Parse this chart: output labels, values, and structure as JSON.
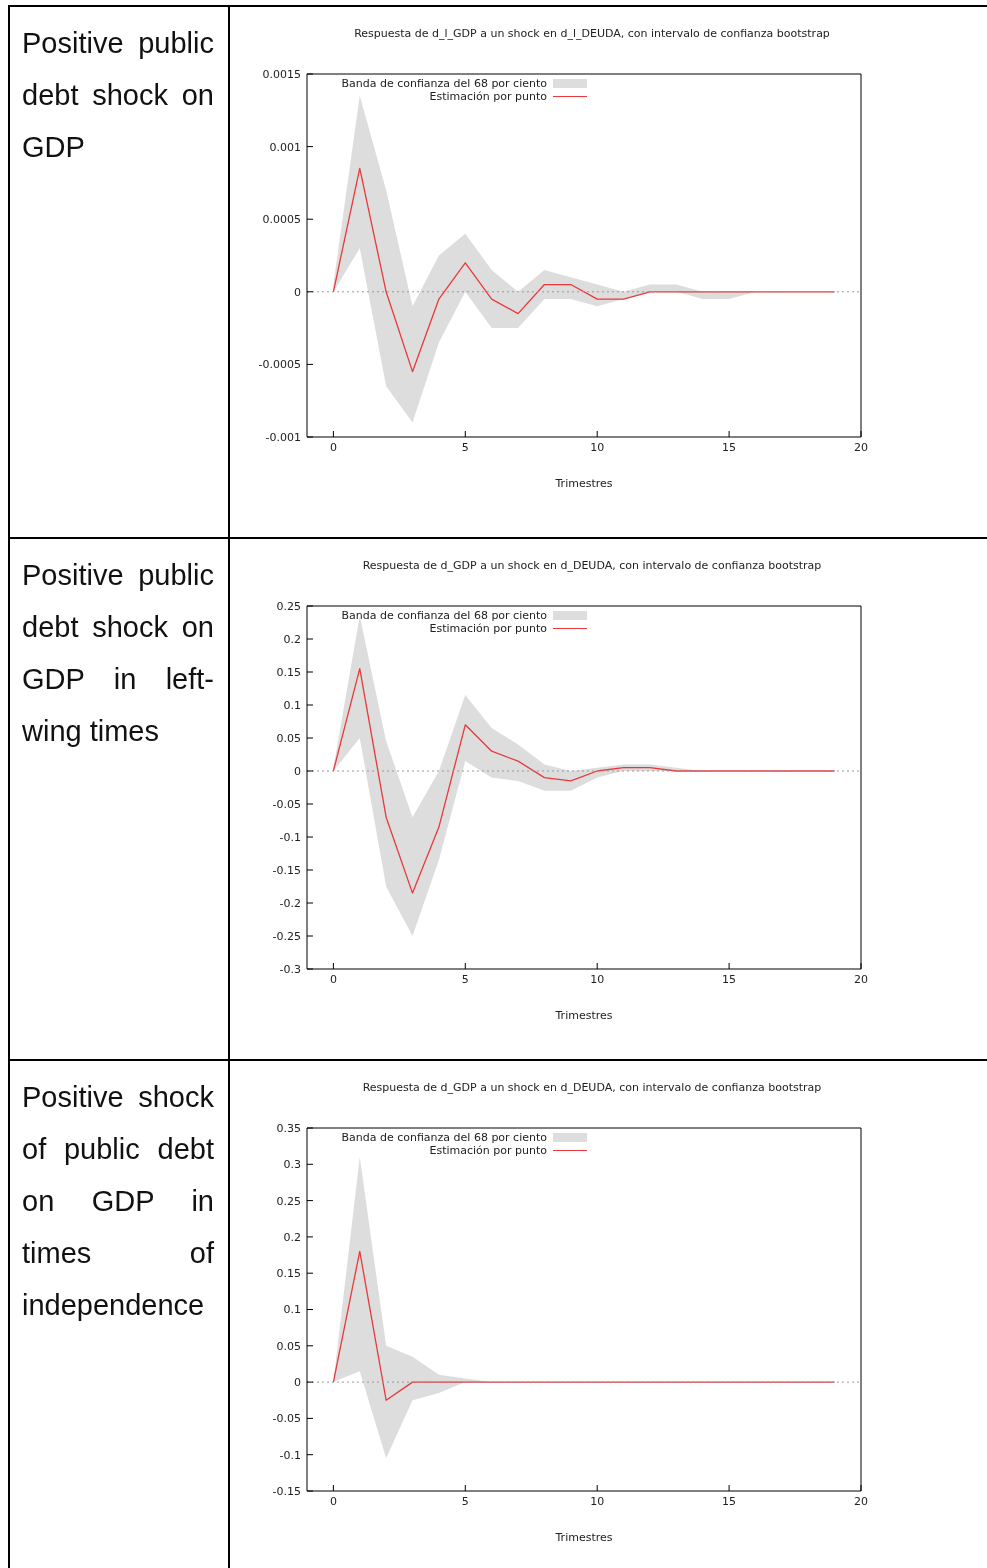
{
  "chart_data": [
    {
      "type": "line",
      "title": "Respuesta de d_l_GDP a un shock en d_l_DEUDA, con intervalo de confianza bootstrap",
      "xlabel": "Trimestres",
      "annotations": [
        "Positive public debt shock on GDP",
        "Banda de confianza del 68 por ciento"
      ],
      "legend": "top left",
      "x": [
        0,
        1,
        2,
        3,
        4,
        5,
        6,
        7,
        8,
        9,
        10,
        11,
        12,
        13,
        14,
        15,
        16,
        17,
        18,
        19
      ],
      "series": [
        {
          "name": "Estimación por punto",
          "color": "#e8393c",
          "values": [
            0,
            0.00085,
            0,
            -0.00055,
            -5e-05,
            0.0002,
            -5e-05,
            -0.00015,
            5e-05,
            5e-05,
            -5e-05,
            -5e-05,
            0,
            0,
            0,
            0,
            0,
            0,
            0,
            0
          ],
          "lower": [
            0,
            0.0003,
            -0.00065,
            -0.0009,
            -0.00035,
            0,
            -0.00025,
            -0.00025,
            -5e-05,
            -5e-05,
            -0.0001,
            -5e-05,
            0,
            0,
            -5e-05,
            -5e-05,
            0,
            0,
            0,
            0
          ],
          "upper": [
            5e-05,
            0.00135,
            0.0007,
            -0.0001,
            0.00025,
            0.0004,
            0.00015,
            0,
            0.00015,
            0.0001,
            5e-05,
            0,
            5e-05,
            5e-05,
            0,
            0,
            0,
            0,
            0,
            0
          ]
        }
      ],
      "xlim": [
        -1,
        20
      ],
      "xticks": [
        0,
        5,
        10,
        15,
        20
      ],
      "ylim": [
        -0.001,
        0.0015
      ],
      "yticks": [
        -0.001,
        -0.0005,
        0,
        0.0005,
        0.001,
        0.0015
      ],
      "ref_lines": [
        {
          "axis": "y",
          "value": 0,
          "color": "#999999",
          "line_style": "dotted"
        }
      ]
    },
    {
      "type": "line",
      "title": "Respuesta de d_GDP a un shock en d_DEUDA, con intervalo de confianza bootstrap",
      "xlabel": "Trimestres",
      "annotations": [
        "Positive public debt shock on GDP in left-wing times",
        "Banda de confianza del 68 por ciento"
      ],
      "legend": "top left",
      "x": [
        0,
        1,
        2,
        3,
        4,
        5,
        6,
        7,
        8,
        9,
        10,
        11,
        12,
        13,
        14,
        15,
        16,
        17,
        18,
        19
      ],
      "series": [
        {
          "name": "Estimación por punto",
          "color": "#e8393c",
          "values": [
            0,
            0.155,
            -0.07,
            -0.185,
            -0.085,
            0.07,
            0.03,
            0.015,
            -0.01,
            -0.015,
            0,
            0.005,
            0.005,
            0,
            0,
            0,
            0,
            0,
            0,
            0
          ],
          "lower": [
            0,
            0.05,
            -0.175,
            -0.25,
            -0.135,
            0.015,
            -0.01,
            -0.015,
            -0.03,
            -0.03,
            -0.01,
            0,
            0,
            0,
            0,
            0,
            0,
            0,
            0,
            0
          ],
          "upper": [
            0.005,
            0.235,
            0.045,
            -0.07,
            0,
            0.115,
            0.065,
            0.04,
            0.01,
            0,
            0.005,
            0.01,
            0.01,
            0.005,
            0,
            0,
            0,
            0,
            0,
            0
          ]
        }
      ],
      "xlim": [
        -1,
        20
      ],
      "xticks": [
        0,
        5,
        10,
        15,
        20
      ],
      "ylim": [
        -0.3,
        0.25
      ],
      "yticks": [
        -0.3,
        -0.25,
        -0.2,
        -0.15,
        -0.1,
        -0.05,
        0,
        0.05,
        0.1,
        0.15,
        0.2,
        0.25
      ],
      "ref_lines": [
        {
          "axis": "y",
          "value": 0,
          "color": "#999999",
          "line_style": "dotted"
        }
      ]
    },
    {
      "type": "line",
      "title": "Respuesta de d_GDP a un shock en d_DEUDA, con intervalo de confianza bootstrap",
      "xlabel": "Trimestres",
      "annotations": [
        "Positive shock of public debt on GDP in times of independence",
        "Banda de confianza del 68 por ciento"
      ],
      "legend": "top left",
      "x": [
        0,
        1,
        2,
        3,
        4,
        5,
        6,
        7,
        8,
        9,
        10,
        11,
        12,
        13,
        14,
        15,
        16,
        17,
        18,
        19
      ],
      "series": [
        {
          "name": "Estimación por punto",
          "color": "#e8393c",
          "values": [
            0,
            0.18,
            -0.025,
            0,
            0,
            0,
            0,
            0,
            0,
            0,
            0,
            0,
            0,
            0,
            0,
            0,
            0,
            0,
            0,
            0
          ],
          "lower": [
            0,
            0.015,
            -0.105,
            -0.025,
            -0.015,
            0,
            0,
            0,
            0,
            0,
            0,
            0,
            0,
            0,
            0,
            0,
            0,
            0,
            0,
            0
          ],
          "upper": [
            0,
            0.31,
            0.05,
            0.035,
            0.01,
            0.005,
            0,
            0,
            0,
            0,
            0,
            0,
            0,
            0,
            0,
            0,
            0,
            0,
            0,
            0
          ]
        }
      ],
      "xlim": [
        -1,
        20
      ],
      "xticks": [
        0,
        5,
        10,
        15,
        20
      ],
      "ylim": [
        -0.15,
        0.35
      ],
      "yticks": [
        -0.15,
        -0.1,
        -0.05,
        0,
        0.05,
        0.1,
        0.15,
        0.2,
        0.25,
        0.3,
        0.35
      ],
      "ref_lines": [
        {
          "axis": "y",
          "value": 0,
          "color": "#999999",
          "line_style": "dotted"
        }
      ]
    }
  ]
}
